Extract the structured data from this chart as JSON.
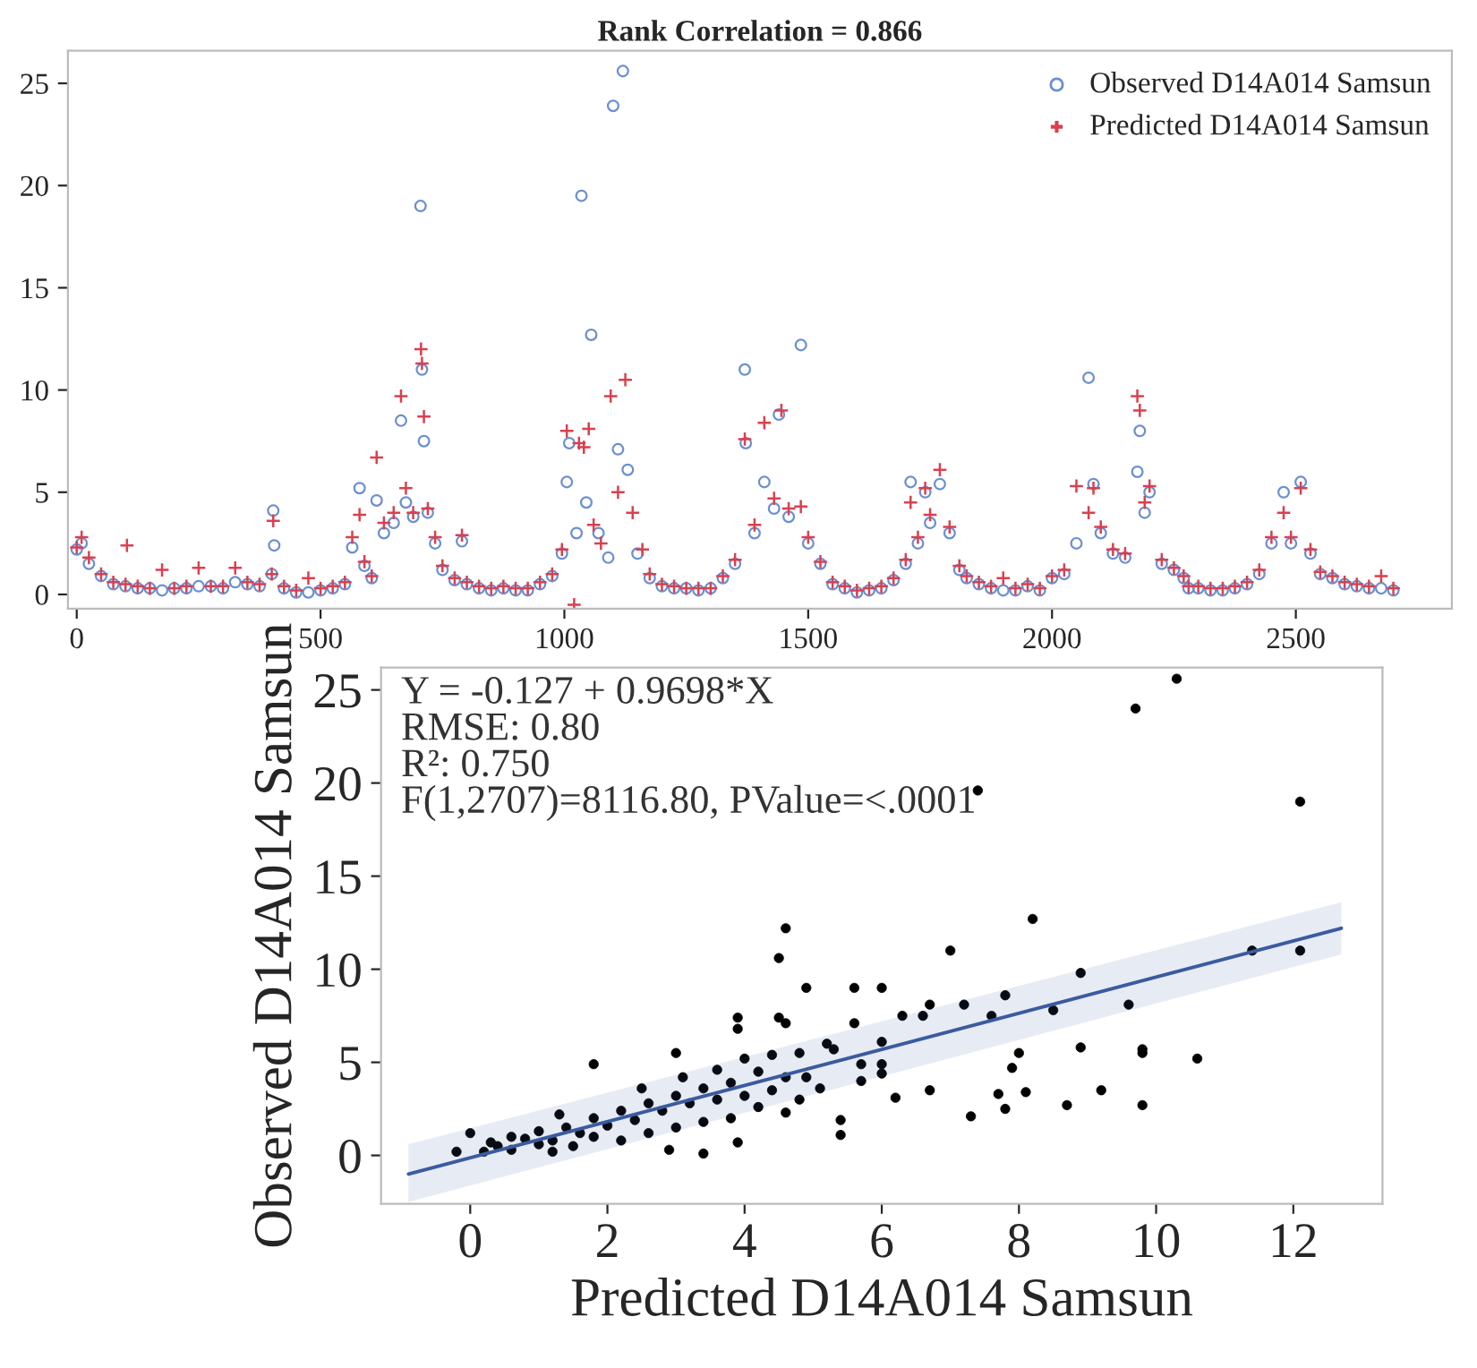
{
  "chart_data": [
    {
      "type": "scatter",
      "title": "Rank Correlation = 0.866",
      "xlim": [
        -18,
        2820
      ],
      "ylim": [
        -0.7,
        26.6
      ],
      "xticks": [
        0,
        500,
        1000,
        1500,
        2000,
        2500
      ],
      "yticks": [
        0,
        5,
        10,
        15,
        20,
        25
      ],
      "legend": "top right",
      "grid": false,
      "series": [
        {
          "name": "Observed D14A014 Samsun",
          "color": "#6b8fd0",
          "marker": "circle",
          "x": [
            0,
            10,
            25,
            50,
            75,
            100,
            125,
            150,
            175,
            200,
            225,
            250,
            275,
            300,
            325,
            350,
            375,
            400,
            403,
            405,
            425,
            450,
            475,
            500,
            525,
            550,
            565,
            580,
            590,
            605,
            615,
            630,
            650,
            665,
            675,
            690,
            705,
            708,
            712,
            720,
            735,
            750,
            775,
            790,
            800,
            825,
            850,
            875,
            900,
            925,
            950,
            975,
            995,
            1005,
            1010,
            1025,
            1035,
            1045,
            1055,
            1070,
            1090,
            1100,
            1110,
            1120,
            1130,
            1150,
            1175,
            1200,
            1225,
            1250,
            1275,
            1300,
            1325,
            1350,
            1370,
            1372,
            1390,
            1410,
            1430,
            1440,
            1460,
            1485,
            1500,
            1525,
            1550,
            1575,
            1600,
            1625,
            1650,
            1675,
            1700,
            1710,
            1725,
            1740,
            1750,
            1770,
            1790,
            1810,
            1825,
            1850,
            1875,
            1900,
            1925,
            1950,
            1975,
            2000,
            2025,
            2050,
            2075,
            2085,
            2100,
            2125,
            2150,
            2175,
            2180,
            2190,
            2200,
            2225,
            2250,
            2270,
            2280,
            2300,
            2325,
            2350,
            2375,
            2400,
            2425,
            2450,
            2475,
            2490,
            2510,
            2530,
            2550,
            2575,
            2600,
            2625,
            2650,
            2675,
            2700
          ],
          "values": [
            2.2,
            2.5,
            1.5,
            0.9,
            0.5,
            0.4,
            0.3,
            0.3,
            0.2,
            0.3,
            0.3,
            0.4,
            0.4,
            0.3,
            0.6,
            0.5,
            0.4,
            1.0,
            4.1,
            2.4,
            0.3,
            0.1,
            0.1,
            0.2,
            0.3,
            0.5,
            2.3,
            5.2,
            1.4,
            0.8,
            4.6,
            3.0,
            3.5,
            8.5,
            4.5,
            3.8,
            19.0,
            11.0,
            7.5,
            4.0,
            2.5,
            1.2,
            0.7,
            2.6,
            0.5,
            0.3,
            0.2,
            0.3,
            0.2,
            0.2,
            0.5,
            0.9,
            2.0,
            5.5,
            7.4,
            3.0,
            19.5,
            4.5,
            12.7,
            3.0,
            1.8,
            23.9,
            7.1,
            25.6,
            6.1,
            2.0,
            0.8,
            0.4,
            0.3,
            0.3,
            0.2,
            0.3,
            0.8,
            1.5,
            11.0,
            7.4,
            3.0,
            5.5,
            4.2,
            8.8,
            3.8,
            12.2,
            2.5,
            1.5,
            0.5,
            0.3,
            0.1,
            0.2,
            0.3,
            0.7,
            1.5,
            5.5,
            2.5,
            5.0,
            3.5,
            5.4,
            3.0,
            1.2,
            0.8,
            0.5,
            0.3,
            0.2,
            0.2,
            0.4,
            0.2,
            0.8,
            1.0,
            2.5,
            10.6,
            5.4,
            3.0,
            2.0,
            1.8,
            6.0,
            8.0,
            4.0,
            5.0,
            1.5,
            1.2,
            0.8,
            0.3,
            0.3,
            0.2,
            0.2,
            0.3,
            0.5,
            1.0,
            2.5,
            5.0,
            2.5,
            5.5,
            2.0,
            1.0,
            0.8,
            0.5,
            0.4,
            0.3,
            0.3,
            0.2
          ]
        },
        {
          "name": "Predicted D14A014 Samsun",
          "color": "#d9404f",
          "marker": "cross",
          "x": [
            0,
            10,
            25,
            50,
            75,
            100,
            103,
            125,
            150,
            175,
            200,
            225,
            250,
            275,
            300,
            325,
            350,
            375,
            400,
            403,
            425,
            450,
            475,
            500,
            525,
            550,
            565,
            580,
            590,
            605,
            615,
            630,
            650,
            665,
            675,
            690,
            706,
            708,
            712,
            720,
            735,
            750,
            775,
            790,
            800,
            825,
            850,
            875,
            900,
            925,
            950,
            975,
            995,
            1005,
            1020,
            1030,
            1040,
            1050,
            1060,
            1075,
            1095,
            1110,
            1125,
            1140,
            1160,
            1175,
            1200,
            1225,
            1250,
            1275,
            1300,
            1325,
            1350,
            1370,
            1390,
            1410,
            1430,
            1445,
            1460,
            1485,
            1500,
            1525,
            1550,
            1575,
            1600,
            1625,
            1650,
            1675,
            1700,
            1710,
            1725,
            1740,
            1750,
            1770,
            1790,
            1810,
            1825,
            1850,
            1875,
            1900,
            1925,
            1950,
            1975,
            2000,
            2025,
            2050,
            2075,
            2085,
            2100,
            2125,
            2150,
            2175,
            2180,
            2190,
            2200,
            2225,
            2250,
            2270,
            2280,
            2300,
            2325,
            2350,
            2375,
            2400,
            2425,
            2450,
            2475,
            2490,
            2510,
            2530,
            2550,
            2575,
            2600,
            2625,
            2650,
            2675,
            2700
          ],
          "values": [
            2.3,
            2.8,
            1.8,
            1.0,
            0.6,
            0.5,
            2.4,
            0.4,
            0.3,
            1.2,
            0.3,
            0.4,
            1.3,
            0.4,
            0.4,
            1.3,
            0.6,
            0.5,
            1.0,
            3.6,
            0.4,
            0.2,
            0.8,
            0.3,
            0.4,
            0.6,
            2.8,
            3.9,
            1.6,
            0.9,
            6.7,
            3.5,
            4.0,
            9.7,
            5.2,
            4.0,
            12.0,
            11.3,
            8.7,
            4.2,
            2.8,
            1.4,
            0.8,
            2.9,
            0.6,
            0.4,
            0.3,
            0.4,
            0.3,
            0.3,
            0.6,
            1.0,
            2.2,
            8.0,
            -0.5,
            7.4,
            7.2,
            8.1,
            3.4,
            2.5,
            9.7,
            5.0,
            10.5,
            4.0,
            2.2,
            1.0,
            0.5,
            0.4,
            0.3,
            0.3,
            0.3,
            0.9,
            1.7,
            7.6,
            3.4,
            8.4,
            4.7,
            9.0,
            4.2,
            4.3,
            2.8,
            1.6,
            0.6,
            0.4,
            0.2,
            0.3,
            0.4,
            0.8,
            1.7,
            4.5,
            2.8,
            5.2,
            3.9,
            6.1,
            3.3,
            1.4,
            0.9,
            0.6,
            0.4,
            0.8,
            0.3,
            0.5,
            0.3,
            0.9,
            1.2,
            5.3,
            4.0,
            5.2,
            3.3,
            2.2,
            2.0,
            9.7,
            9.0,
            4.5,
            5.3,
            1.7,
            1.3,
            0.9,
            0.4,
            0.4,
            0.3,
            0.3,
            0.4,
            0.6,
            1.2,
            2.8,
            4.0,
            2.8,
            5.2,
            2.2,
            1.1,
            0.9,
            0.6,
            0.5,
            0.4,
            0.9,
            0.3
          ]
        }
      ]
    },
    {
      "type": "scatter",
      "xlabel": "Predicted D14A014 Samsun",
      "ylabel": "Observed D14A014 Samsun",
      "xlim": [
        -1.3,
        13.3
      ],
      "ylim": [
        -2.6,
        26.2
      ],
      "xticks": [
        0,
        2,
        4,
        6,
        8,
        10,
        12
      ],
      "yticks": [
        0,
        5,
        10,
        15,
        20,
        25
      ],
      "grid": false,
      "annotations": [
        "Y = -0.127 + 0.9698*X",
        "RMSE: 0.80",
        "R²: 0.750",
        "F(1,2707)=8116.80, PValue=<.0001"
      ],
      "series": [
        {
          "color": "#000000",
          "marker": "circle",
          "x": [
            10.3,
            9.7,
            7.4,
            12.1,
            12.1,
            11.4,
            4.6,
            4.5,
            8.2,
            7.0,
            4.9,
            5.6,
            6.0,
            8.9,
            7.8,
            6.7,
            7.2,
            9.6,
            8.5,
            6.3,
            6.6,
            7.6,
            5.6,
            4.5,
            4.6,
            3.9,
            3.9,
            8.0,
            8.9,
            9.8,
            9.8,
            10.6,
            7.9,
            6.0,
            5.2,
            5.3,
            6.0,
            5.7,
            6.0,
            5.7,
            4.9,
            5.1,
            6.7,
            8.1,
            9.2,
            7.7,
            6.2,
            8.7,
            9.8,
            7.8,
            7.3,
            5.4,
            5.4,
            3.4,
            1.8,
            3.0,
            0.0,
            -0.2,
            0.2,
            0.4,
            0.6,
            0.8,
            1.0,
            1.0,
            1.2,
            1.4,
            1.5,
            1.6,
            1.8,
            1.8,
            2.0,
            2.2,
            2.2,
            2.4,
            2.6,
            2.6,
            2.8,
            3.0,
            3.0,
            3.2,
            3.4,
            3.4,
            3.6,
            3.6,
            3.8,
            3.8,
            4.0,
            4.0,
            4.2,
            4.2,
            4.4,
            4.4,
            4.6,
            4.6,
            4.8,
            4.8,
            3.9,
            2.9,
            1.3,
            0.6,
            2.5,
            3.1,
            1.2,
            0.3
          ],
          "values": [
            25.6,
            24.0,
            19.6,
            19.0,
            11.0,
            11.0,
            12.2,
            10.6,
            12.7,
            11.0,
            9.0,
            9.0,
            9.0,
            9.8,
            8.6,
            8.1,
            8.1,
            8.1,
            7.8,
            7.5,
            7.5,
            7.5,
            7.1,
            7.4,
            7.1,
            7.4,
            6.8,
            5.5,
            5.8,
            5.7,
            5.5,
            5.2,
            4.7,
            6.1,
            6.0,
            5.7,
            4.9,
            4.9,
            4.4,
            4.0,
            4.2,
            3.6,
            3.5,
            3.4,
            3.5,
            3.3,
            3.1,
            2.7,
            2.7,
            2.5,
            2.1,
            1.9,
            1.1,
            0.1,
            4.9,
            5.5,
            1.2,
            0.2,
            0.2,
            0.5,
            0.3,
            0.9,
            0.6,
            1.3,
            0.8,
            1.5,
            0.5,
            1.2,
            2.0,
            1.0,
            1.6,
            2.4,
            0.8,
            1.9,
            2.8,
            1.2,
            2.4,
            3.2,
            1.5,
            2.8,
            3.6,
            1.8,
            3.0,
            4.6,
            3.9,
            2.0,
            5.2,
            3.2,
            4.5,
            2.6,
            5.4,
            3.5,
            4.2,
            2.3,
            5.5,
            3.0,
            0.7,
            0.3,
            2.2,
            1.0,
            3.6,
            4.2,
            0.2,
            0.7
          ]
        },
        {
          "type": "line",
          "color": "#3a5ba0",
          "x": [
            -0.9,
            12.7
          ],
          "values": [
            -1.0,
            12.2
          ],
          "lower": [
            -2.5,
            10.8
          ],
          "upper": [
            0.6,
            13.6
          ]
        }
      ]
    }
  ]
}
